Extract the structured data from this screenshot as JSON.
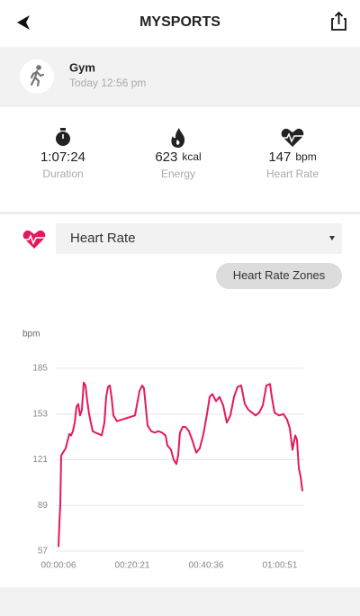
{
  "header": {
    "title": "MYSPORTS"
  },
  "activity": {
    "name": "Gym",
    "time": "Today 12:56 pm"
  },
  "stats": [
    {
      "value": "1:07:24",
      "label": "Duration"
    },
    {
      "value": "623",
      "unit": "kcal",
      "label": "Energy"
    },
    {
      "value": "147",
      "unit": "bpm",
      "label": "Heart Rate"
    }
  ],
  "selector": {
    "selected": "Heart Rate",
    "button": "Heart Rate Zones"
  },
  "chart_data": {
    "type": "line",
    "y_label": "bpm",
    "color": "#e5185f",
    "x": [
      6,
      21,
      36,
      50,
      80,
      124,
      154,
      184,
      213,
      243,
      273,
      302,
      332,
      361,
      391,
      421,
      450,
      480,
      510,
      539,
      569,
      613,
      673,
      717,
      762,
      791,
      821,
      851,
      880,
      910,
      969,
      1043,
      1117,
      1191,
      1265,
      1339,
      1384,
      1413,
      1443,
      1473,
      1532,
      1591,
      1651,
      1710,
      1769,
      1799,
      1858,
      1902,
      1947,
      1976,
      2006,
      2051,
      2095,
      2154,
      2214,
      2273,
      2332,
      2392,
      2451,
      2495,
      2540,
      2599,
      2658,
      2718,
      2777,
      2836,
      2896,
      2955,
      3014,
      3074,
      3133,
      3192,
      3252,
      3311,
      3370,
      3429,
      3489,
      3518,
      3563,
      3637,
      3711,
      3770,
      3815,
      3859,
      3904,
      3933,
      3963,
      3993,
      4022
    ],
    "values": [
      60,
      77,
      90,
      124,
      126,
      129,
      134,
      139,
      138,
      141,
      147,
      158,
      160,
      152,
      156,
      175,
      173,
      162,
      153,
      147,
      141,
      140,
      139,
      138,
      147,
      165,
      172,
      173,
      165,
      152,
      148,
      149,
      150,
      151,
      152,
      169,
      173,
      171,
      158,
      145,
      141,
      140,
      141,
      140,
      138,
      131,
      128,
      121,
      118,
      124,
      140,
      144,
      144,
      141,
      134,
      126,
      129,
      139,
      153,
      165,
      167,
      162,
      165,
      159,
      147,
      152,
      165,
      172,
      173,
      160,
      156,
      154,
      152,
      154,
      159,
      173,
      174,
      165,
      154,
      152,
      153,
      149,
      143,
      128,
      138,
      135,
      115,
      109,
      99
    ],
    "xlim": [
      0,
      4050
    ],
    "ylim": [
      57,
      185
    ],
    "xticks": [
      {
        "value": 6,
        "label": "00:00:06"
      },
      {
        "value": 1221,
        "label": "00:20:21"
      },
      {
        "value": 2436,
        "label": "00:40:36"
      },
      {
        "value": 3651,
        "label": "01:00:51"
      }
    ],
    "yticks": [
      57,
      89,
      121,
      153,
      185
    ],
    "grid": true
  }
}
